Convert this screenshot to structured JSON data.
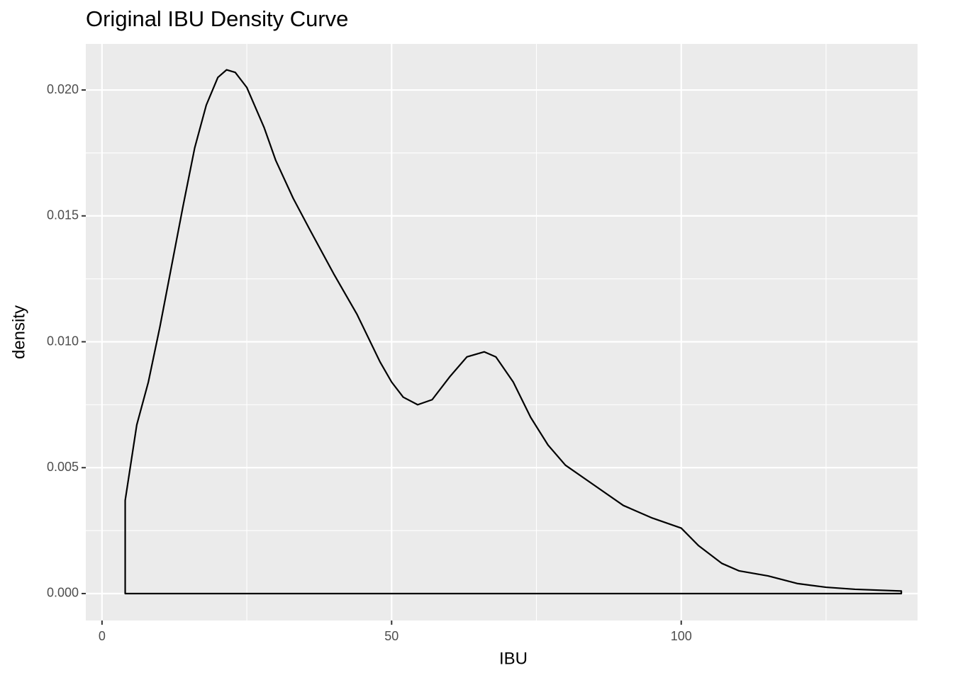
{
  "chart_data": {
    "type": "density",
    "title": "Original IBU Density Curve",
    "x_label": "IBU",
    "y_label": "density",
    "x": [
      4,
      6,
      8,
      10,
      12,
      14,
      16,
      18,
      20,
      21.5,
      23,
      25,
      28,
      30,
      33,
      36,
      40,
      44,
      48,
      50,
      52,
      54.5,
      57,
      60,
      63,
      66,
      68,
      71,
      74,
      77,
      80,
      85,
      90,
      95,
      100,
      103,
      107,
      110,
      115,
      120,
      125,
      130,
      138
    ],
    "values": [
      0.0037,
      0.0067,
      0.0084,
      0.0106,
      0.013,
      0.0154,
      0.0177,
      0.0194,
      0.0205,
      0.0208,
      0.0207,
      0.0201,
      0.0185,
      0.0172,
      0.0157,
      0.0144,
      0.0127,
      0.0111,
      0.0092,
      0.0084,
      0.0078,
      0.0075,
      0.0077,
      0.0086,
      0.0094,
      0.0096,
      0.0094,
      0.0084,
      0.007,
      0.0059,
      0.0051,
      0.0043,
      0.0035,
      0.003,
      0.0026,
      0.0019,
      0.0012,
      0.0009,
      0.0007,
      0.0004,
      0.00025,
      0.00017,
      0.0001
    ],
    "color": "#000000",
    "xlim": [
      -2.8,
      140.8
    ],
    "ylim": [
      -0.00107,
      0.02183
    ],
    "xticks": [
      0,
      50,
      100
    ],
    "yticks": [
      {
        "value": 0,
        "label": "0.000"
      },
      {
        "value": 0.005,
        "label": "0.005"
      },
      {
        "value": 0.01,
        "label": "0.010"
      },
      {
        "value": 0.015,
        "label": "0.015"
      },
      {
        "value": 0.02,
        "label": "0.020"
      }
    ],
    "xminor": [
      25,
      75,
      125
    ],
    "yminor": [
      0.0025,
      0.0075,
      0.0125,
      0.0175
    ],
    "grid": true
  }
}
